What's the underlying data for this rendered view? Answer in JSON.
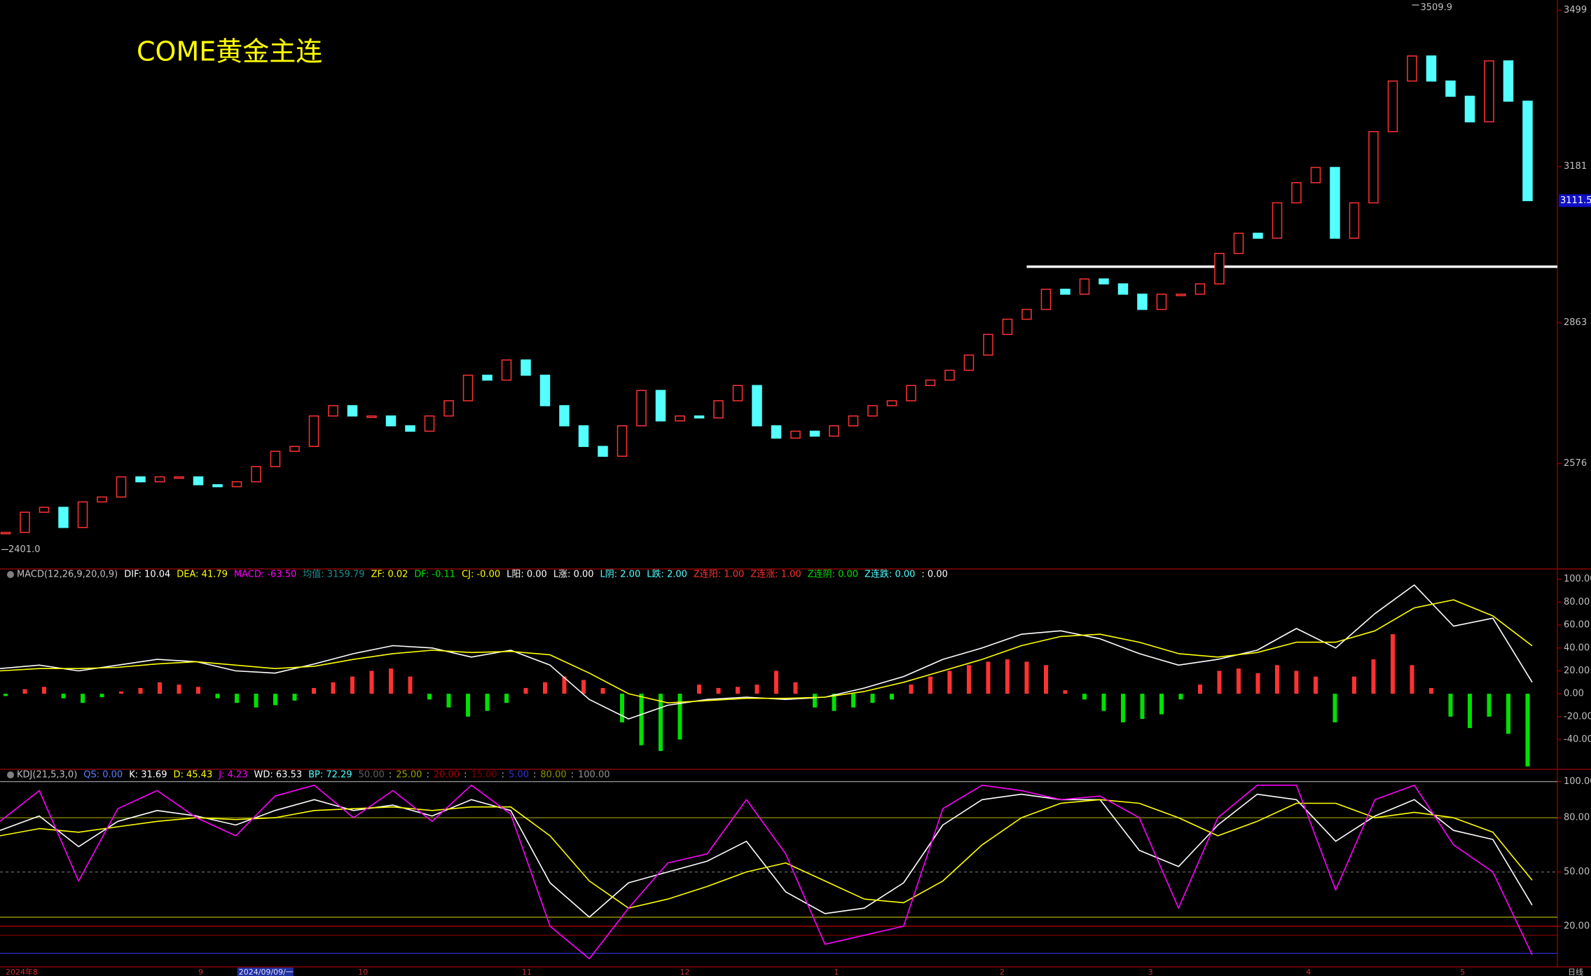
{
  "chart_data": [
    {
      "type": "candlestick",
      "title": "COME黄金主连",
      "closes": [
        2436,
        2477,
        2487,
        2446,
        2498,
        2508,
        2549,
        2539,
        2549,
        2549,
        2533,
        2529,
        2539,
        2570,
        2601,
        2611,
        2673,
        2694,
        2673,
        2673,
        2653,
        2642,
        2673,
        2704,
        2756,
        2746,
        2787,
        2756,
        2694,
        2653,
        2611,
        2591,
        2653,
        2725,
        2663,
        2673,
        2669,
        2704,
        2735,
        2653,
        2628,
        2642,
        2632,
        2653,
        2673,
        2694,
        2704,
        2735,
        2746,
        2766,
        2797,
        2839,
        2870,
        2890,
        2931,
        2921,
        2952,
        2942,
        2921,
        2890,
        2921,
        2921,
        2942,
        3004,
        3045,
        3035,
        3107,
        3148,
        3179,
        3035,
        3107,
        3252,
        3355,
        3406,
        3355,
        3324,
        3272,
        3396,
        3314,
        3111.5
      ],
      "up_color": "#ff3232",
      "down_color": "#54ffff",
      "ylim": [
        2363,
        3520
      ],
      "yticks": [
        3499,
        3181,
        2863,
        2576
      ],
      "high": {
        "value": 3509.9,
        "index": 73
      },
      "low": {
        "value": {
          "value": 2401,
          "label": "2401.0"
        },
        "index": 0
      },
      "last_price": 3111.5,
      "support_line": {
        "value": 2977,
        "from_index": 53
      },
      "x_labels": [
        {
          "index": 0,
          "label": "2024年8"
        },
        {
          "index": 10,
          "label": "9"
        },
        {
          "index": 12.1,
          "label": "2024/09/09/一",
          "highlight": true
        },
        {
          "index": 18.3,
          "label": "10"
        },
        {
          "index": 26.8,
          "label": "11"
        },
        {
          "index": 35,
          "label": "12"
        },
        {
          "index": 43,
          "label": "1"
        },
        {
          "index": 51.6,
          "label": "2"
        },
        {
          "index": 59.3,
          "label": "3"
        },
        {
          "index": 67.5,
          "label": "4"
        },
        {
          "index": 75.5,
          "label": "5"
        }
      ],
      "period": "日线"
    },
    {
      "type": "macd",
      "header": [
        {
          "text": "MACD(12,26,9,20,0,9)",
          "color": "#c0c0c0"
        },
        {
          "text": "DIF: 10.04",
          "color": "#ffffff"
        },
        {
          "text": "DEA: 41.79",
          "color": "#ffff00"
        },
        {
          "text": "MACD: -63.50",
          "color": "#ff00ff"
        },
        {
          "text": "均值: 3159.79",
          "color": "#1e9090"
        },
        {
          "text": "ZF: 0.02",
          "color": "#ffff00"
        },
        {
          "text": "DF: -0.11",
          "color": "#00e000"
        },
        {
          "text": "CJ: -0.00",
          "color": "#ffff00"
        },
        {
          "text": "L阳: 0.00",
          "color": "#ffffff"
        },
        {
          "text": "L涨: 0.00",
          "color": "#ffffff"
        },
        {
          "text": "L阴: 2.00",
          "color": "#54ffff"
        },
        {
          "text": "L跌: 2.00",
          "color": "#54ffff"
        },
        {
          "text": "Z连阳: 1.00",
          "color": "#ff3232"
        },
        {
          "text": "Z连涨: 1.00",
          "color": "#ff3232"
        },
        {
          "text": "Z连阴: 0.00",
          "color": "#00e000"
        },
        {
          "text": "Z连跌: 0.00",
          "color": "#54ffff"
        },
        {
          "text": ": 0.00",
          "color": "#ffffff"
        }
      ],
      "series": [
        {
          "color": "#ffffff",
          "values": [
            22,
            25,
            20,
            25,
            30,
            28,
            20,
            18,
            26,
            35,
            42,
            40,
            32,
            38,
            25,
            -5,
            -22,
            -10,
            -5,
            -3,
            -5,
            -3,
            5,
            15,
            30,
            40,
            52,
            55,
            48,
            35,
            25,
            30,
            38,
            57,
            40,
            70,
            95,
            59,
            66,
            10.04
          ]
        },
        {
          "color": "#ffff00",
          "values": [
            20,
            22,
            22,
            23,
            26,
            28,
            25,
            22,
            24,
            30,
            35,
            38,
            36,
            37,
            34,
            18,
            0,
            -8,
            -6,
            -4,
            -4,
            -3,
            2,
            10,
            20,
            30,
            42,
            50,
            52,
            45,
            35,
            32,
            36,
            45,
            45,
            55,
            75,
            82,
            68,
            41.79
          ]
        }
      ],
      "histogram": {
        "up_color": "#ff3232",
        "down_color": "#00e000",
        "values": [
          -2,
          4,
          6,
          -4,
          -8,
          -3,
          2,
          5,
          10,
          8,
          6,
          -4,
          -8,
          -12,
          -10,
          -6,
          5,
          10,
          15,
          20,
          22,
          15,
          -5,
          -12,
          -20,
          -15,
          -8,
          5,
          10,
          15,
          12,
          5,
          -25,
          -45,
          -50,
          -40,
          8,
          5,
          6,
          8,
          20,
          10,
          -12,
          -15,
          -12,
          -8,
          -5,
          8,
          15,
          20,
          25,
          28,
          30,
          28,
          25,
          3,
          -5,
          -15,
          -25,
          -22,
          -18,
          -5,
          8,
          20,
          22,
          18,
          25,
          20,
          15,
          -25,
          15,
          30,
          52,
          25,
          5,
          -20,
          -30,
          -20,
          -35,
          -63.5
        ]
      },
      "ylim": [
        -66,
        109
      ],
      "yticks": [
        {
          "value": 100,
          "label": "100.00"
        },
        {
          "value": 80,
          "label": "80.00"
        },
        {
          "value": 60,
          "label": "60.00"
        },
        {
          "value": 40,
          "label": "40.00"
        },
        {
          "value": 20,
          "label": "20.00"
        },
        {
          "value": 0,
          "label": "0.00"
        },
        {
          "value": -20,
          "label": "-20.00"
        },
        {
          "value": -40,
          "label": "-40.00"
        }
      ]
    },
    {
      "type": "kdj",
      "header": [
        {
          "text": "KDJ(21,5,3,0)",
          "color": "#c0c0c0"
        },
        {
          "text": "QS: 0.00",
          "color": "#5a7fff"
        },
        {
          "text": "K: 31.69",
          "color": "#ffffff"
        },
        {
          "text": "D: 45.43",
          "color": "#ffff00"
        },
        {
          "text": "J: 4.23",
          "color": "#ff00ff"
        },
        {
          "text": "WD: 63.53",
          "color": "#ffffff"
        },
        {
          "text": "BP: 72.29",
          "color": "#54ffff"
        }
      ],
      "levels": [
        {
          "value": 50,
          "label": "50.00",
          "color": "#606060"
        },
        {
          "value": 25,
          "label": "25.00",
          "color": "#a0a000"
        },
        {
          "value": 20,
          "label": "20.00",
          "color": "#b00000"
        },
        {
          "value": 15,
          "label": "15.00",
          "color": "#800000"
        },
        {
          "value": 5,
          "label": "5.00",
          "color": "#3030d0"
        },
        {
          "value": 80,
          "label": "80.00",
          "color": "#909000"
        },
        {
          "value": 100,
          "label": "100.00",
          "color": "#909090"
        }
      ],
      "level_separator": ":",
      "series": [
        {
          "color": "#ffffff",
          "values": [
            73,
            81,
            64,
            78,
            84,
            81,
            76,
            84,
            90,
            84,
            87,
            81,
            90,
            84,
            44,
            25,
            44,
            50,
            56,
            67,
            39,
            27,
            30,
            44,
            76,
            90,
            93,
            90,
            90,
            62,
            53,
            76,
            93,
            90,
            67,
            81,
            90,
            73,
            68,
            31.69
          ]
        },
        {
          "color": "#ffff00",
          "values": [
            70,
            74,
            72,
            75,
            78,
            80,
            79,
            80,
            84,
            85,
            86,
            84,
            86,
            86,
            70,
            45,
            30,
            35,
            42,
            50,
            55,
            45,
            35,
            33,
            45,
            65,
            80,
            88,
            90,
            88,
            80,
            70,
            78,
            88,
            88,
            80,
            83,
            80,
            72,
            45.43
          ]
        },
        {
          "color": "#ff00ff",
          "values": [
            78,
            95,
            45,
            85,
            95,
            80,
            70,
            92,
            98,
            80,
            95,
            78,
            98,
            82,
            20,
            2,
            30,
            55,
            60,
            90,
            60,
            10,
            15,
            20,
            85,
            98,
            95,
            90,
            92,
            80,
            30,
            80,
            98,
            98,
            40,
            90,
            98,
            65,
            50,
            4.23
          ]
        }
      ],
      "ylim": [
        -2.5,
        106.8
      ],
      "yticks": [
        {
          "value": 100,
          "label": "100.00"
        },
        {
          "value": 80,
          "label": "80.00"
        },
        {
          "value": 50,
          "label": "50.00"
        },
        {
          "value": 20,
          "label": "20.00"
        }
      ]
    }
  ]
}
